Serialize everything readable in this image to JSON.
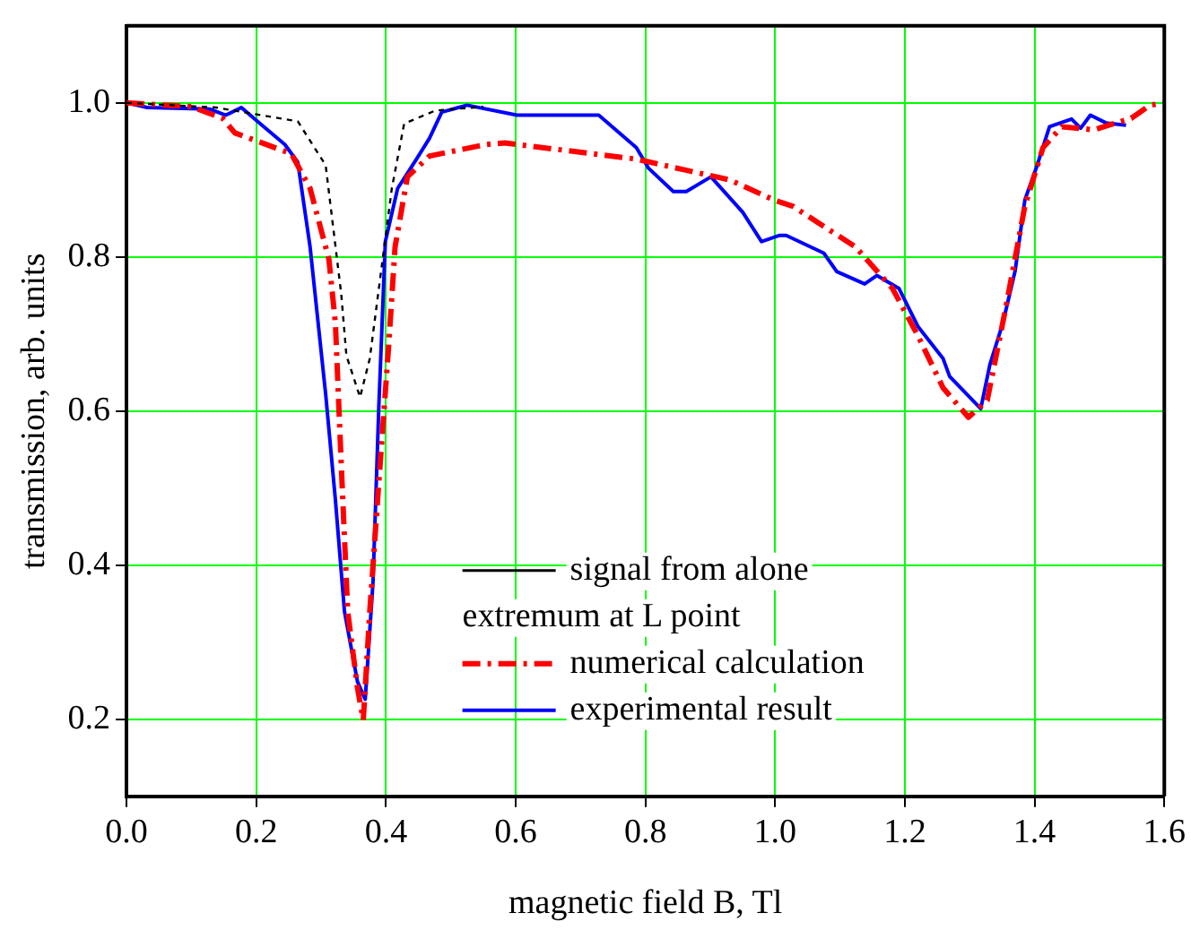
{
  "chart_data": {
    "type": "line",
    "xlabel": "magnetic field B, Tl",
    "ylabel": "transmission, arb. units",
    "xlim": [
      0,
      1.6
    ],
    "xticks": [
      {
        "value": 0,
        "label": "0.0"
      },
      0.2,
      0.4,
      0.6,
      0.8,
      {
        "value": 1,
        "label": "1.0"
      },
      1.2,
      1.4,
      1.6
    ],
    "ylim": [
      0.1,
      1.1
    ],
    "yticks": [
      0.2,
      0.4,
      0.6,
      0.8,
      {
        "value": 1,
        "label": "1.0"
      }
    ],
    "grid": true,
    "legend": "bottom",
    "marker": "none",
    "series": [
      {
        "name": "signal from alone extremum at L point",
        "color": "#000000",
        "line_style": "dotted",
        "x": [
          0,
          0.138,
          0.264,
          0.307,
          0.331,
          0.339,
          0.36,
          0.375,
          0.389,
          0.409,
          0.428,
          0.476,
          0.55
        ],
        "values": [
          1.0,
          0.994,
          0.976,
          0.919,
          0.752,
          0.672,
          0.618,
          0.668,
          0.759,
          0.889,
          0.973,
          0.99,
          0.995
        ]
      },
      {
        "name": "numerical calculation",
        "color": "#ff0000",
        "line_style": "dashed",
        "x": [
          0,
          0.1,
          0.148,
          0.167,
          0.254,
          0.283,
          0.312,
          0.322,
          0.331,
          0.341,
          0.356,
          0.365,
          0.375,
          0.389,
          0.404,
          0.414,
          0.433,
          0.467,
          0.554,
          0.583,
          0.786,
          0.93,
          0.998,
          1.027,
          1.124,
          1.181,
          1.22,
          1.259,
          1.298,
          1.327,
          1.356,
          1.385,
          1.413,
          1.442,
          1.491,
          1.549,
          1.578,
          1.6
        ],
        "values": [
          1.0,
          0.995,
          0.98,
          0.961,
          0.934,
          0.889,
          0.797,
          0.714,
          0.531,
          0.34,
          0.241,
          0.199,
          0.34,
          0.508,
          0.683,
          0.813,
          0.904,
          0.931,
          0.946,
          0.948,
          0.927,
          0.9,
          0.874,
          0.866,
          0.813,
          0.759,
          0.698,
          0.63,
          0.592,
          0.614,
          0.736,
          0.866,
          0.942,
          0.969,
          0.965,
          0.98,
          0.997,
          1.0
        ]
      },
      {
        "name": "experimental result",
        "color": "#0000ff",
        "line_style": "solid",
        "x": [
          0,
          0.032,
          0.128,
          0.153,
          0.177,
          0.206,
          0.244,
          0.264,
          0.283,
          0.307,
          0.322,
          0.336,
          0.356,
          0.368,
          0.38,
          0.389,
          0.399,
          0.418,
          0.447,
          0.467,
          0.486,
          0.525,
          0.602,
          0.728,
          0.786,
          0.805,
          0.843,
          0.863,
          0.901,
          0.95,
          0.979,
          1.007,
          1.017,
          1.075,
          1.095,
          1.138,
          1.157,
          1.191,
          1.22,
          1.259,
          1.269,
          1.317,
          1.331,
          1.351,
          1.37,
          1.385,
          1.404,
          1.423,
          1.457,
          1.471,
          1.486,
          1.51,
          1.541
        ],
        "values": [
          1.0,
          0.994,
          0.992,
          0.984,
          0.994,
          0.973,
          0.946,
          0.923,
          0.813,
          0.622,
          0.485,
          0.34,
          0.249,
          0.226,
          0.378,
          0.607,
          0.82,
          0.889,
          0.927,
          0.954,
          0.988,
          0.997,
          0.984,
          0.984,
          0.942,
          0.915,
          0.885,
          0.885,
          0.904,
          0.858,
          0.82,
          0.828,
          0.828,
          0.805,
          0.781,
          0.765,
          0.776,
          0.759,
          0.71,
          0.668,
          0.645,
          0.603,
          0.66,
          0.714,
          0.782,
          0.874,
          0.919,
          0.969,
          0.979,
          0.967,
          0.984,
          0.974,
          0.971
        ]
      }
    ]
  }
}
